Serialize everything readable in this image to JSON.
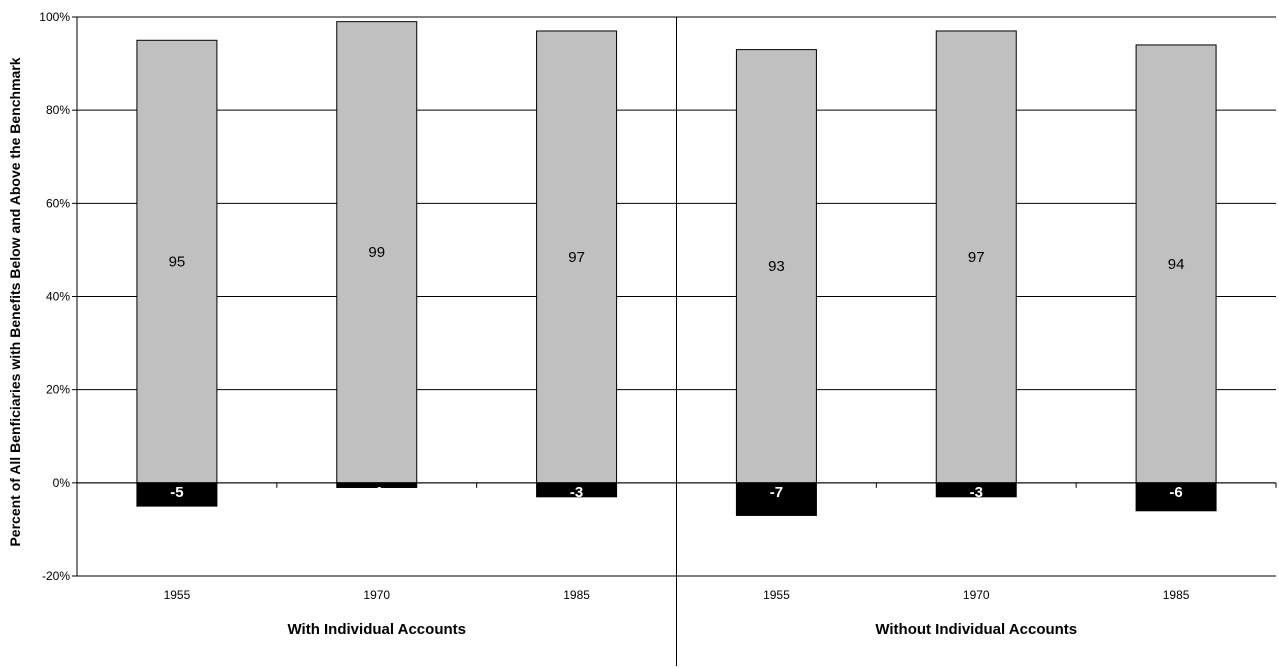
{
  "chart_data": {
    "type": "bar",
    "stacked": true,
    "ylabel": "Percent of All Benficiaries with Benefits Below and Above the Benchmark",
    "xlabel": "",
    "ylim": [
      -20,
      100
    ],
    "yticks": [
      "-20%",
      "0%",
      "20%",
      "40%",
      "60%",
      "80%",
      "100%"
    ],
    "ytick_values": [
      -20,
      0,
      20,
      40,
      60,
      80,
      100
    ],
    "grid": true,
    "legend": "none",
    "groups": [
      {
        "label": "With Individual Accounts",
        "categories": [
          "1955",
          "1970",
          "1985"
        ],
        "above": [
          95,
          99,
          97
        ],
        "below": [
          -5,
          -1,
          -3
        ]
      },
      {
        "label": "Without Individual Accounts",
        "categories": [
          "1955",
          "1970",
          "1985"
        ],
        "above": [
          93,
          97,
          94
        ],
        "below": [
          -7,
          -3,
          -6
        ]
      }
    ],
    "colors": {
      "above": "#c0c0c0",
      "below": "#000000",
      "grid": "#000000"
    }
  }
}
